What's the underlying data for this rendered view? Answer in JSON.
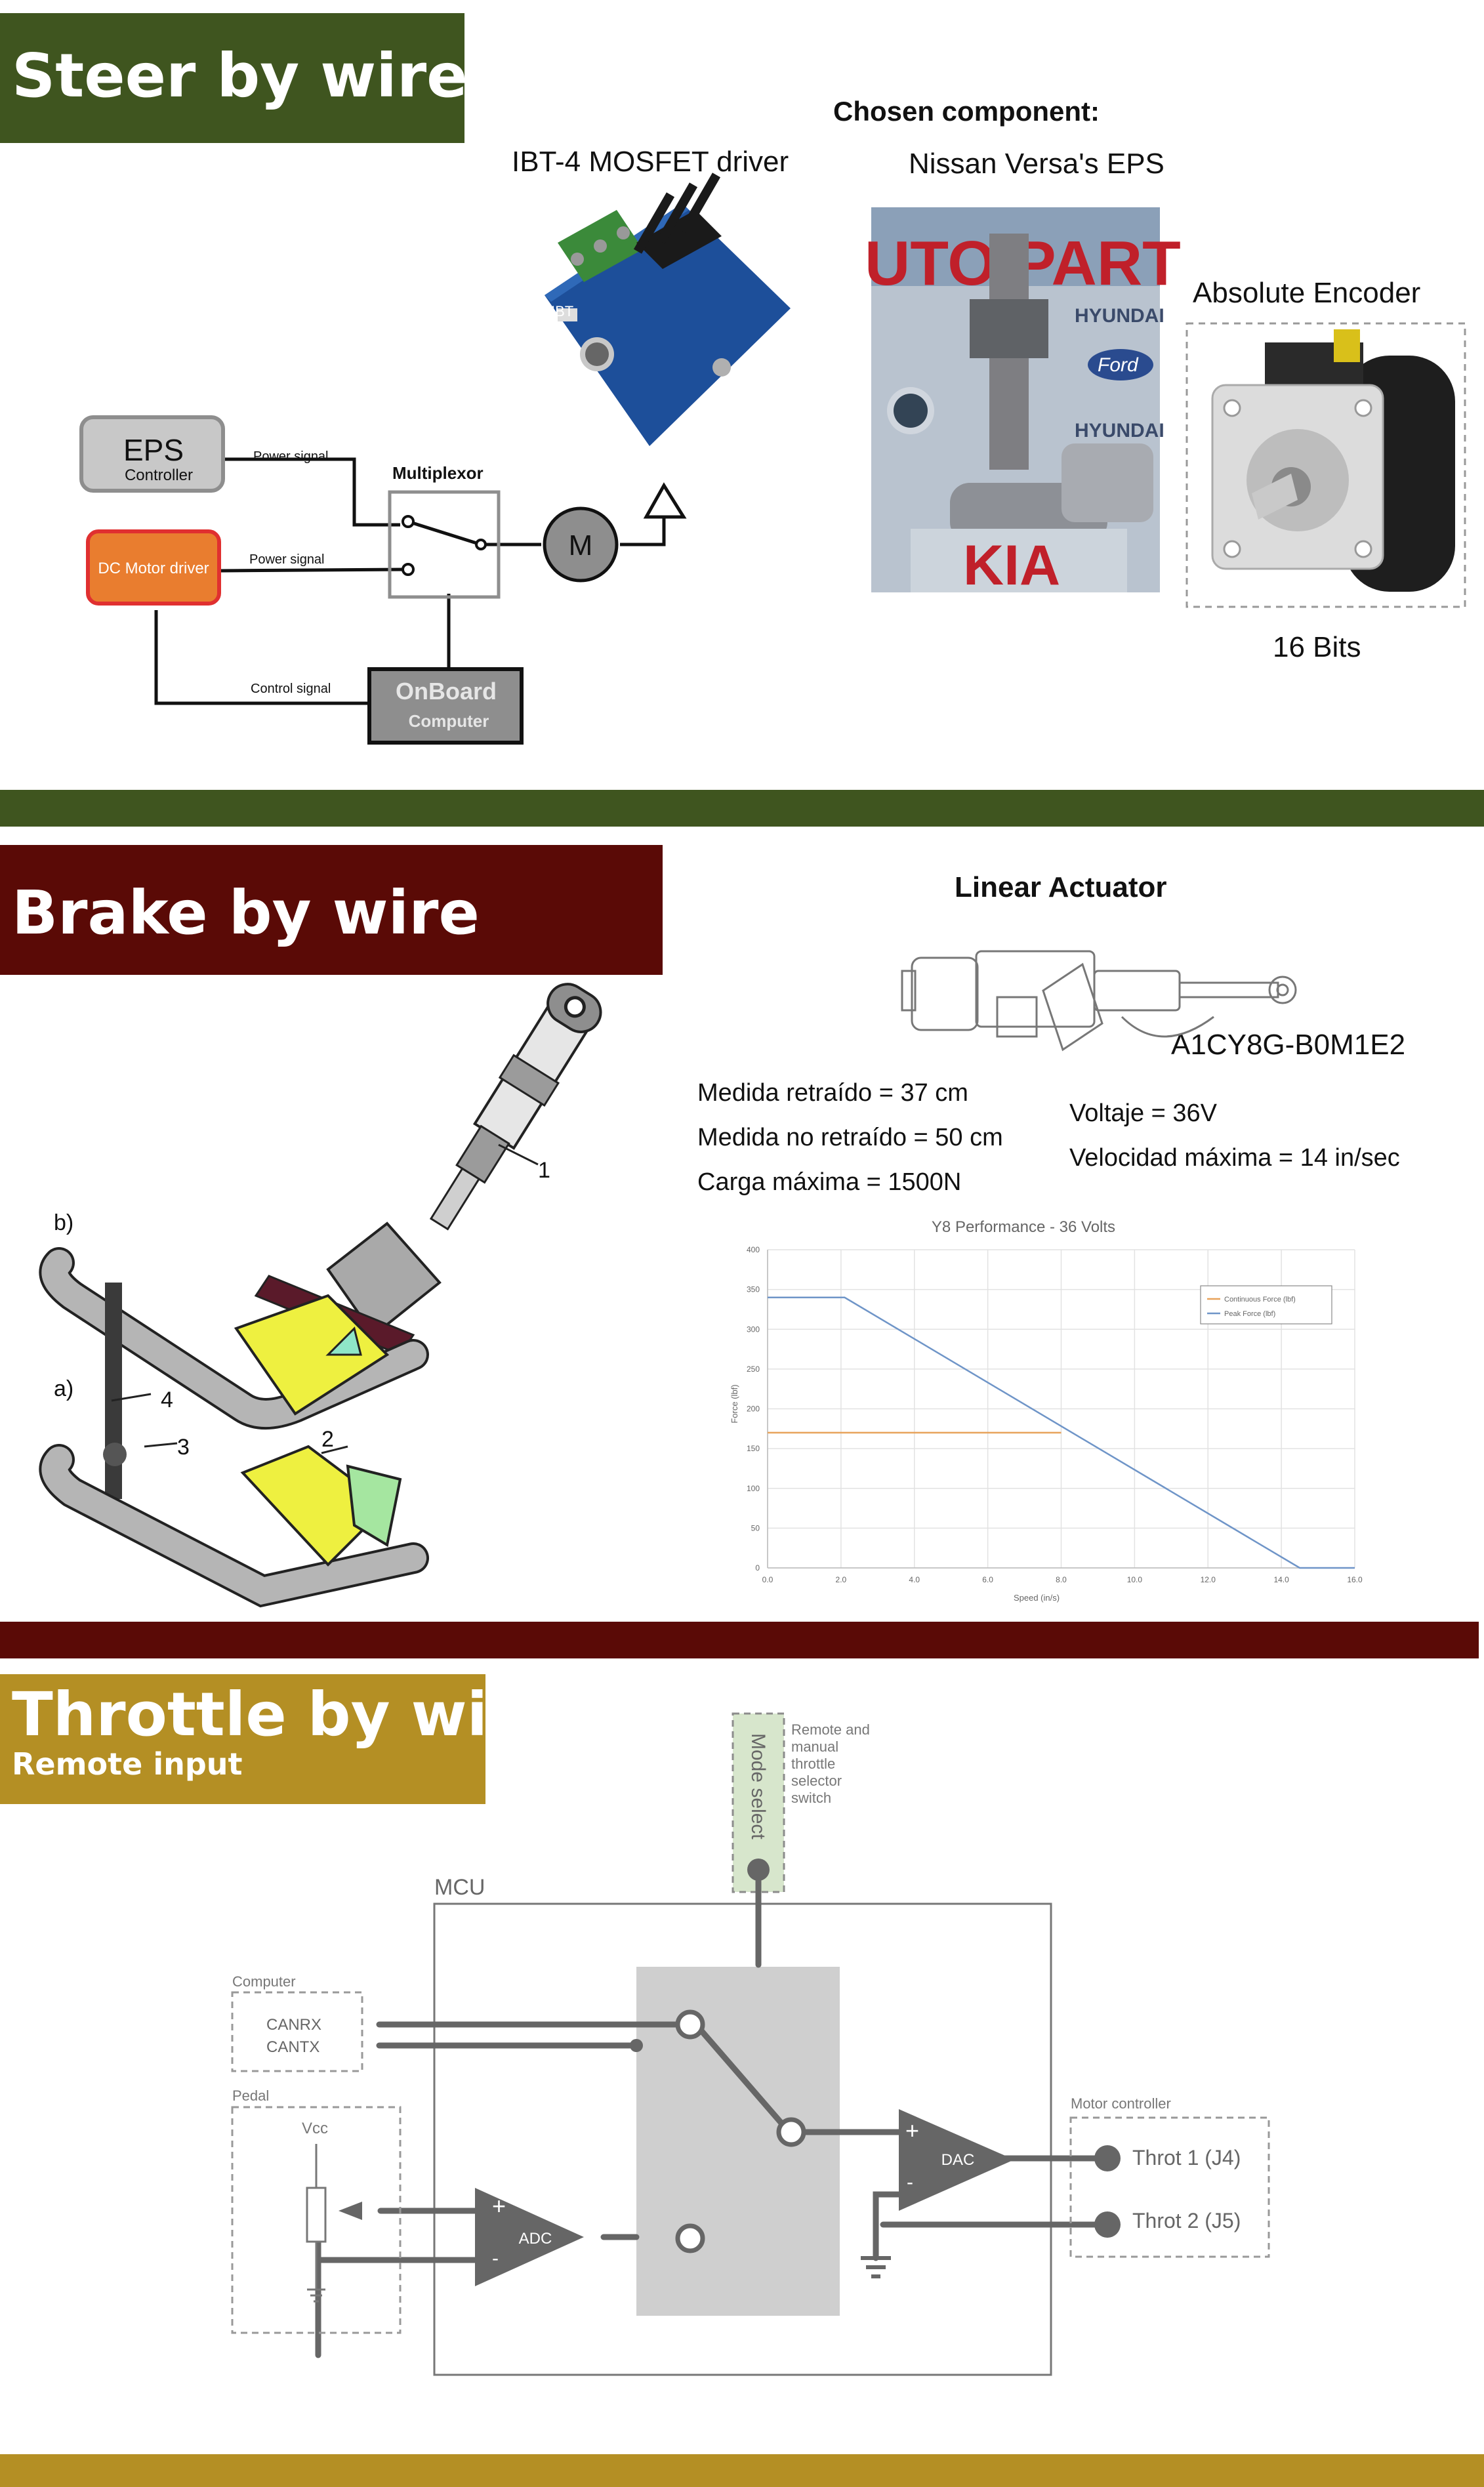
{
  "colors": {
    "steer": "#3f551f",
    "brake": "#5a0a06",
    "throttle": "#b48f24",
    "diagram_gray": "#666666",
    "mode_select_fill": "#d7e6cc"
  },
  "steer": {
    "title": "Steer by wire",
    "chosen_component": "Chosen component:",
    "mosfet_label": "IBT-4 MOSFET driver",
    "eps_label": "Nissan Versa's EPS",
    "encoder_label": "Absolute Encoder",
    "encoder_bits": "16 Bits",
    "diagram": {
      "eps_box": "EPS",
      "eps_sub": "Controller",
      "dc_driver": "DC Motor driver",
      "power_signal_1": "Power signal",
      "power_signal_2": "Power signal",
      "control_signal": "Control signal",
      "multiplexor": "Multiplexor",
      "motor": "M",
      "onboard": "OnBoard",
      "onboard_sub": "Computer"
    },
    "photo_eps_text": [
      "UTO PART",
      "HYUNDAI",
      "Ford",
      "HYUNDAI",
      "KIA"
    ],
    "mosfet_board_text": "IBT"
  },
  "brake": {
    "title": "Brake by wire",
    "actuator_title": "Linear Actuator",
    "part_number": "A1CY8G-B0M1E2",
    "specs_left": [
      "Medida retraído = 37 cm",
      "Medida no retraído = 50 cm",
      "Carga máxima = 1500N"
    ],
    "specs_right": [
      "Voltaje = 36V",
      "Velocidad máxima = 14 in/sec"
    ],
    "pedal_labels": {
      "b": "b)",
      "a": "a)",
      "n1": "1",
      "n2": "2",
      "n3": "3",
      "n4": "4"
    }
  },
  "chart_data": {
    "type": "line",
    "title": "Y8 Performance - 36 Volts",
    "xlabel": "Speed (in/s)",
    "ylabel": "Force (lbf)",
    "xlim": [
      0,
      16
    ],
    "ylim": [
      0,
      400
    ],
    "xticks": [
      "0.0",
      "2.0",
      "4.0",
      "6.0",
      "8.0",
      "10.0",
      "12.0",
      "14.0",
      "16.0"
    ],
    "yticks": [
      "0",
      "50",
      "100",
      "150",
      "200",
      "250",
      "300",
      "350",
      "400"
    ],
    "grid": true,
    "legend_position": "top-right",
    "series": [
      {
        "name": "Continuous Force (lbf)",
        "color": "#e8a25a",
        "x": [
          0,
          8.0
        ],
        "y": [
          170,
          170
        ]
      },
      {
        "name": "Peak Force (lbf)",
        "color": "#6f95c8",
        "x": [
          0,
          2.1,
          14.5,
          16.0
        ],
        "y": [
          340,
          340,
          0,
          0
        ]
      }
    ]
  },
  "throttle": {
    "title": "Throttle by wire",
    "subtitle": "Remote input",
    "mode_select": "Mode select",
    "mode_note": [
      "Remote and",
      "manual",
      "throttle",
      "selector",
      "switch"
    ],
    "mcu": "MCU",
    "computer": "Computer",
    "canrx": "CANRX",
    "cantx": "CANTX",
    "pedal": "Pedal",
    "vcc": "Vcc",
    "adc": "ADC",
    "dac": "DAC",
    "plus": "+",
    "minus": "-",
    "motor_controller": "Motor controller",
    "throt1": "Throt 1 (J4)",
    "throt2": "Throt 2 (J5)"
  }
}
